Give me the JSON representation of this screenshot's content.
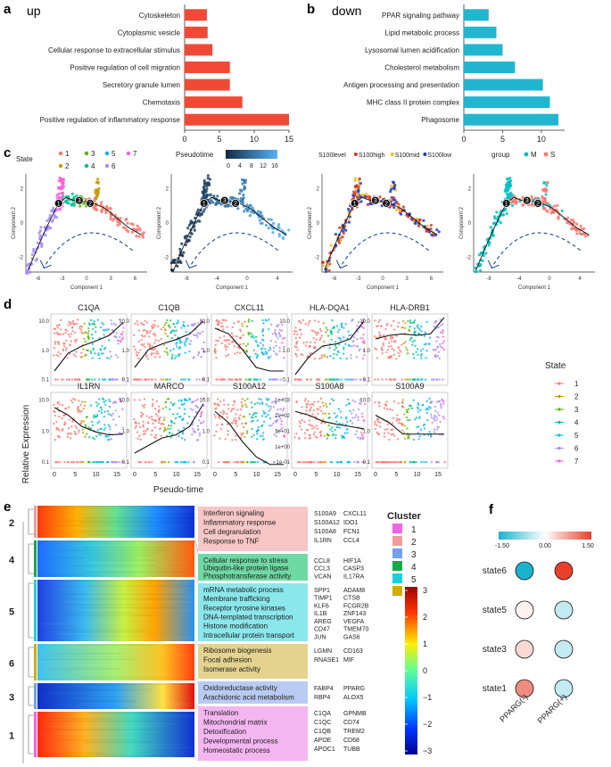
{
  "labels": {
    "a": "a",
    "b": "b",
    "c": "c",
    "d": "d",
    "e": "e",
    "f": "f"
  },
  "panel_a": {
    "title": "up",
    "color": "#f04a37",
    "categories": [
      "Cytoskeleton",
      "Cytoplasmic vesicle",
      "Cellular response to extracellular stimulus",
      "Positive regulation of cell migration",
      "Secretory granule lumen",
      "Chemotaxis",
      "Positive regulation of inflammatory response"
    ],
    "values": [
      3.2,
      3.3,
      4.0,
      6.5,
      6.5,
      8.3,
      15.0
    ],
    "ticks": [
      "0",
      "5",
      "10",
      "15"
    ],
    "xmax": 15
  },
  "panel_b": {
    "title": "down",
    "color": "#22b5cf",
    "categories": [
      "PPAR signaling pathway",
      "Lipid metabolic process",
      "Lysosomal lumen acidification",
      "Cholesterol metabolism",
      "Antigen processing and presentation",
      "MHC class II protein complex",
      "Phagosome"
    ],
    "values": [
      3.2,
      4.2,
      5.0,
      6.6,
      10.2,
      11.1,
      12.2
    ],
    "ticks": [
      "0",
      "5",
      "10"
    ],
    "xmax": 13
  },
  "panel_c": {
    "state_title": "State",
    "states": [
      {
        "n": "1",
        "c": "#f8766d"
      },
      {
        "n": "2",
        "c": "#c49a00"
      },
      {
        "n": "3",
        "c": "#53b400"
      },
      {
        "n": "4",
        "c": "#00c094"
      },
      {
        "n": "5",
        "c": "#00b6eb"
      },
      {
        "n": "6",
        "c": "#a58aff"
      },
      {
        "n": "7",
        "c": "#fb61d7"
      }
    ],
    "pseudotime_title": "Pseudotime",
    "pseudotime_ticks": [
      "0",
      "4",
      "8",
      "12",
      "16"
    ],
    "s100_legend": [
      "S100level",
      "S100high",
      "S100mid",
      "S100low"
    ],
    "group_title": "group",
    "groups": [
      {
        "n": "M",
        "c": "#00bfc4"
      },
      {
        "n": "S",
        "c": "#f8766d"
      }
    ],
    "xlabel": "Component 1",
    "ylabel": "Component 2",
    "xticks": [
      "-6",
      "-3",
      "0",
      "3",
      "6"
    ],
    "xticks2": [
      "-8",
      "-4",
      "0",
      "4"
    ],
    "yticks": [
      "2",
      "0",
      "-2"
    ],
    "branch_points": [
      "1",
      "3",
      "2"
    ]
  },
  "panel_d": {
    "ylabel": "Relative Expression",
    "xlabel": "Pseudo-time",
    "genes_row1": [
      "C1QA",
      "C1QB",
      "CXCL11",
      "HLA-DQA1",
      "HLA-DRB1"
    ],
    "genes_row2": [
      "IL1RN",
      "MARCO",
      "S100A12",
      "S100A8",
      "S100A9"
    ],
    "yticks": [
      "10.0",
      "1.0",
      "0.1"
    ],
    "yticks_alt": [
      "1e+03",
      "1e+02",
      "1e+01",
      "1e+00",
      "1e-01"
    ],
    "xticks": [
      "0",
      "5",
      "10",
      "15"
    ],
    "legend_title": "State",
    "states": [
      "1",
      "2",
      "3",
      "4",
      "5",
      "6",
      "7"
    ]
  },
  "panel_e": {
    "clusters": [
      {
        "id": "2",
        "color": "#f7c6c6",
        "terms": [
          "Interferon signaling",
          "Inflammatory response",
          "Cell degranulation",
          "Response to TNF"
        ],
        "genes": [
          "S100A9",
          "CXCL11",
          "S100A12",
          "IDO1",
          "S100A8",
          "FCN1",
          "IL1RN",
          "CCL4"
        ]
      },
      {
        "id": "4",
        "color": "#6fd9a4",
        "terms": [
          "Cellular response to stress",
          "Ubiquitin-like protein ligase",
          "Phosphotransferase activity"
        ],
        "genes": [
          "CCL8",
          "HIF1A",
          "CCL3",
          "CASP3",
          "VCAN",
          "IL17RA"
        ]
      },
      {
        "id": "5",
        "color": "#8ae7ec",
        "terms": [
          "mRNA metabolic process",
          "Membrane trafficking",
          "Receptor tyrosine kinases",
          "DNA-templated transcription",
          "Histone modification",
          "Intracellular protein transport"
        ],
        "genes": [
          "SPP1",
          "ADAM8",
          "TIMP1",
          "CTSB",
          "KLF6",
          "FCGR2B",
          "IL1B",
          "ZNF143",
          "AREG",
          "VEGFA",
          "CD47",
          "TMEM70",
          "JUN",
          "GAS6"
        ]
      },
      {
        "id": "6",
        "color": "#e3d38e",
        "terms": [
          "Ribosome biogenesis",
          "Focal adhesion",
          "Isomerase activity"
        ],
        "genes": [
          "LGMN",
          "CD163",
          "RNASE1",
          "MIF"
        ]
      },
      {
        "id": "3",
        "color": "#b9cbf2",
        "terms": [
          "Oxidoreductase activity",
          "Arachidonic acid metabolism"
        ],
        "genes": [
          "FABP4",
          "PPARG",
          "RBP4",
          "ALOX5"
        ]
      },
      {
        "id": "1",
        "color": "#f4b6f0",
        "terms": [
          "Translation",
          "Mitochondrial matrix",
          "Detoxification",
          "Developmental process",
          "Homeostatic process"
        ],
        "genes": [
          "C1QA",
          "GPNMB",
          "C1QC",
          "CD74",
          "C1QB",
          "TREM2",
          "APOE",
          "CD68",
          "APOC1",
          "TUBB"
        ]
      }
    ],
    "cluster_legend_title": "Cluster",
    "cluster_legend": [
      {
        "n": "1",
        "c": "#f065e6"
      },
      {
        "n": "2",
        "c": "#f19c9c"
      },
      {
        "n": "3",
        "c": "#6fa1ee"
      },
      {
        "n": "4",
        "c": "#19a84a"
      },
      {
        "n": "5",
        "c": "#1ad0dc"
      },
      {
        "n": "6",
        "c": "#d1ae00"
      }
    ],
    "scale_ticks": [
      "3",
      "2",
      "1",
      "0",
      "−1",
      "−2",
      "−3"
    ]
  },
  "panel_f": {
    "scale_ticks": [
      "-1.50",
      "0.00",
      "1.50"
    ],
    "rows": [
      "state6",
      "state5",
      "state3",
      "state1"
    ],
    "cols": [
      "PPARG(-)",
      "PPARG(+)"
    ],
    "values": [
      [
        -1.5,
        1.5
      ],
      [
        0.1,
        -0.4
      ],
      [
        0.3,
        -0.4
      ],
      [
        0.9,
        -0.4
      ]
    ]
  }
}
